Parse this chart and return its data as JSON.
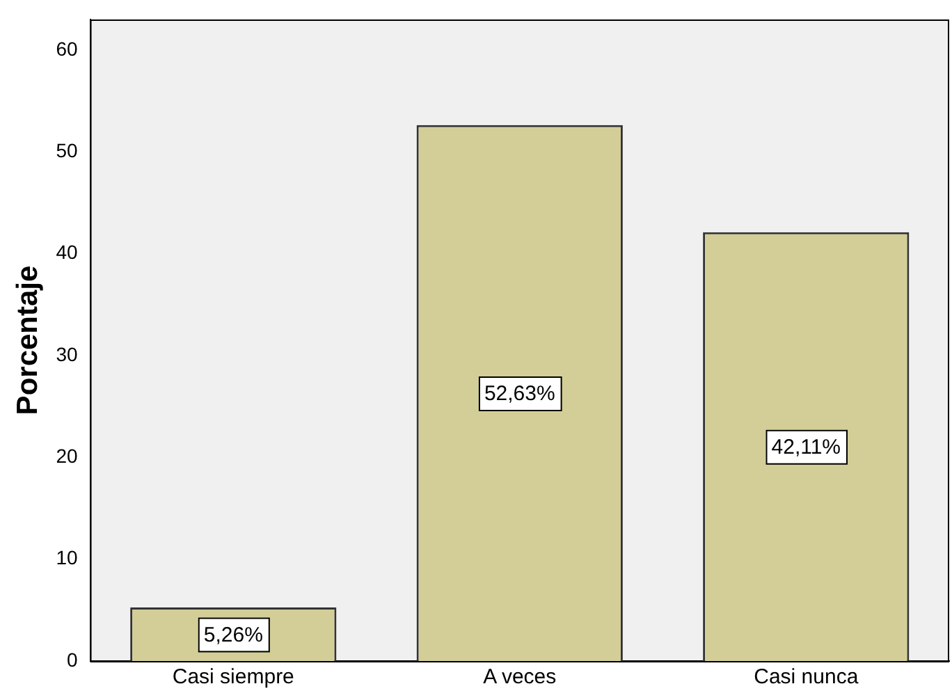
{
  "chart_data": {
    "type": "bar",
    "ylabel": "Porcentaje",
    "categories": [
      "Casi siempre",
      "A veces",
      "Casi nunca"
    ],
    "values": [
      5.26,
      52.63,
      42.11
    ],
    "color": "#d3ce97",
    "value_labels": [
      "5,26%",
      "52,63%",
      "42,11%"
    ],
    "ylim": [
      0,
      63
    ],
    "yticks": [
      0,
      10,
      20,
      30,
      40,
      50,
      60
    ],
    "grid": false,
    "legend": false
  }
}
